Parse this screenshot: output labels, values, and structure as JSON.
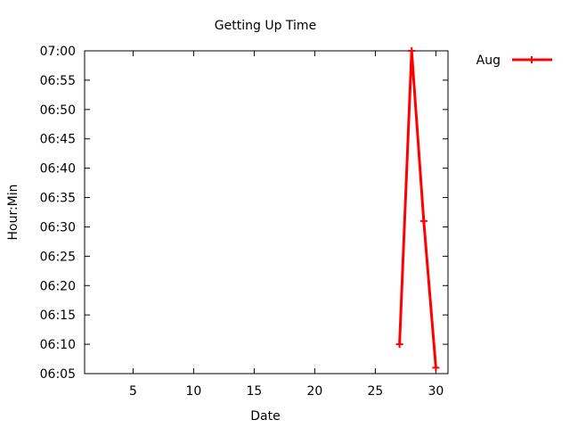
{
  "chart_data": {
    "type": "line",
    "title": "Getting Up Time",
    "xlabel": "Date",
    "ylabel": "Hour:Min",
    "xlim": [
      1,
      31
    ],
    "ylim": [
      "06:05",
      "07:00"
    ],
    "x_ticks": [
      5,
      10,
      15,
      20,
      25,
      30
    ],
    "y_ticks": [
      "06:05",
      "06:10",
      "06:15",
      "06:20",
      "06:25",
      "06:30",
      "06:35",
      "06:40",
      "06:45",
      "06:50",
      "06:55",
      "07:00"
    ],
    "grid": false,
    "legend_position": "outside-top-right",
    "series": [
      {
        "name": "Aug",
        "color": "#ff0000",
        "marker": "plus",
        "points": [
          {
            "x": 27,
            "y": "06:10"
          },
          {
            "x": 28,
            "y": "07:00"
          },
          {
            "x": 29,
            "y": "06:31"
          },
          {
            "x": 30,
            "y": "06:06"
          }
        ]
      }
    ]
  }
}
